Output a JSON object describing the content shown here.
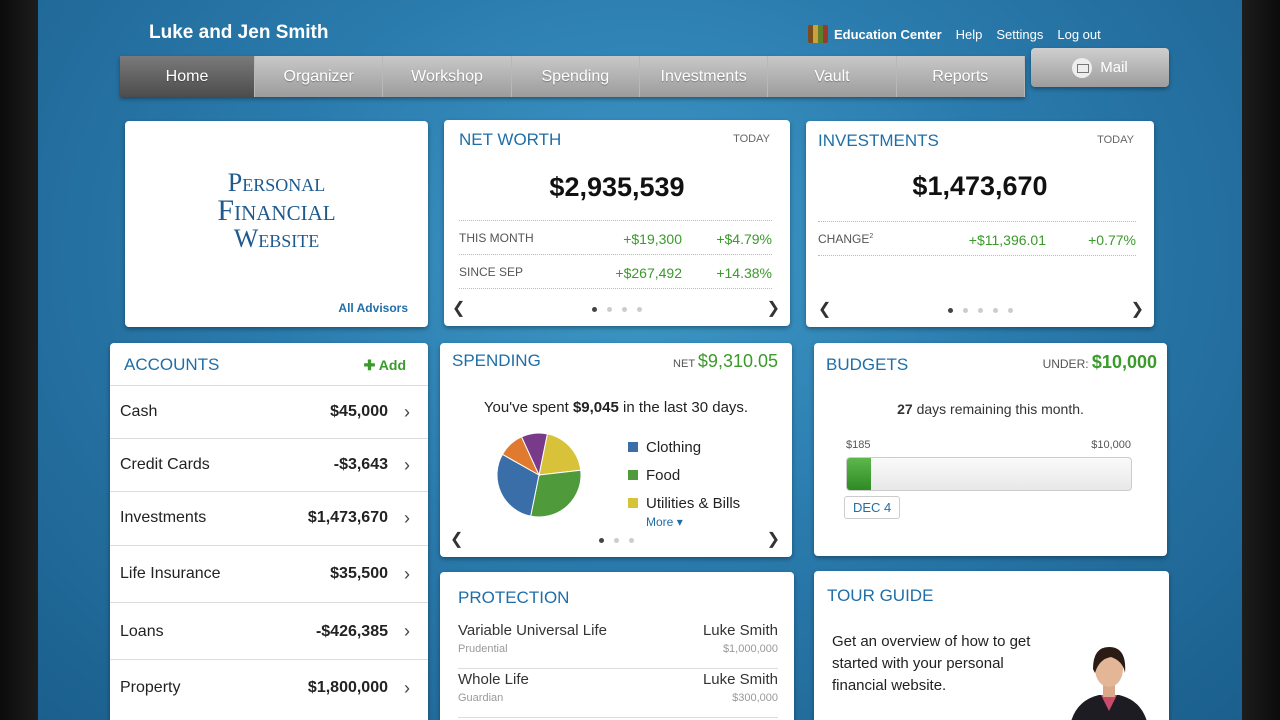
{
  "header": {
    "user": "Luke and Jen Smith",
    "links": [
      "Education Center",
      "Help",
      "Settings",
      "Log out"
    ]
  },
  "nav": {
    "tabs": [
      "Home",
      "Organizer",
      "Workshop",
      "Spending",
      "Investments",
      "Vault",
      "Reports"
    ],
    "active": "Home",
    "mail": "Mail"
  },
  "logo_card": {
    "line1": "Personal",
    "line2": "Financial",
    "line3": "Website",
    "link": "All Advisors"
  },
  "net_worth": {
    "title": "NET WORTH",
    "period": "TODAY",
    "value": "$2,935,539",
    "rows": [
      {
        "label": "THIS MONTH",
        "amount": "+$19,300",
        "pct": "+$4.79%"
      },
      {
        "label": "SINCE SEP",
        "amount": "+$267,492",
        "pct": "+14.38%"
      }
    ]
  },
  "investments": {
    "title": "INVESTMENTS",
    "period": "TODAY",
    "value": "$1,473,670",
    "row": {
      "label": "CHANGE",
      "sup": "2",
      "amount": "+$11,396.01",
      "pct": "+0.77%"
    }
  },
  "accounts": {
    "title": "ACCOUNTS",
    "add": "Add",
    "items": [
      {
        "name": "Cash",
        "amount": "$45,000"
      },
      {
        "name": "Credit Cards",
        "amount": "-$3,643"
      },
      {
        "name": "Investments",
        "amount": "$1,473,670"
      },
      {
        "name": "Life Insurance",
        "amount": "$35,500"
      },
      {
        "name": "Loans",
        "amount": "-$426,385"
      },
      {
        "name": "Property",
        "amount": "$1,800,000"
      }
    ]
  },
  "spending": {
    "title": "SPENDING",
    "net_label": "NET",
    "net_value": "$9,310.05",
    "sentence_pre": "You've spent",
    "sentence_amount": "$9,045",
    "sentence_post": "in the last 30 days.",
    "legend": [
      {
        "label": "Clothing",
        "color": "#3a6ea8"
      },
      {
        "label": "Food",
        "color": "#4f9a3a"
      },
      {
        "label": "Utilities & Bills",
        "color": "#d8c23a"
      }
    ],
    "more": "More",
    "pie_colors": [
      "#d8c23a",
      "#4f9a3a",
      "#3a6ea8",
      "#e07a2e",
      "#7a3a8a"
    ],
    "pie_fractions": [
      0.2,
      0.3,
      0.3,
      0.1,
      0.1
    ]
  },
  "budgets": {
    "title": "BUDGETS",
    "under_label": "UNDER:",
    "under_value": "$10,000",
    "days_num": "27",
    "days_text": "days remaining this month.",
    "min": "$185",
    "max": "$10,000",
    "progress": 0.085,
    "tag": "DEC 4"
  },
  "protection": {
    "title": "PROTECTION",
    "items": [
      {
        "type": "Variable Universal Life",
        "company": "Prudential",
        "owner": "Luke Smith",
        "amount": "$1,000,000"
      },
      {
        "type": "Whole Life",
        "company": "Guardian",
        "owner": "Luke Smith",
        "amount": "$300,000"
      }
    ]
  },
  "tour": {
    "title": "TOUR GUIDE",
    "text": "Get an overview of how to get started with your personal financial website."
  }
}
